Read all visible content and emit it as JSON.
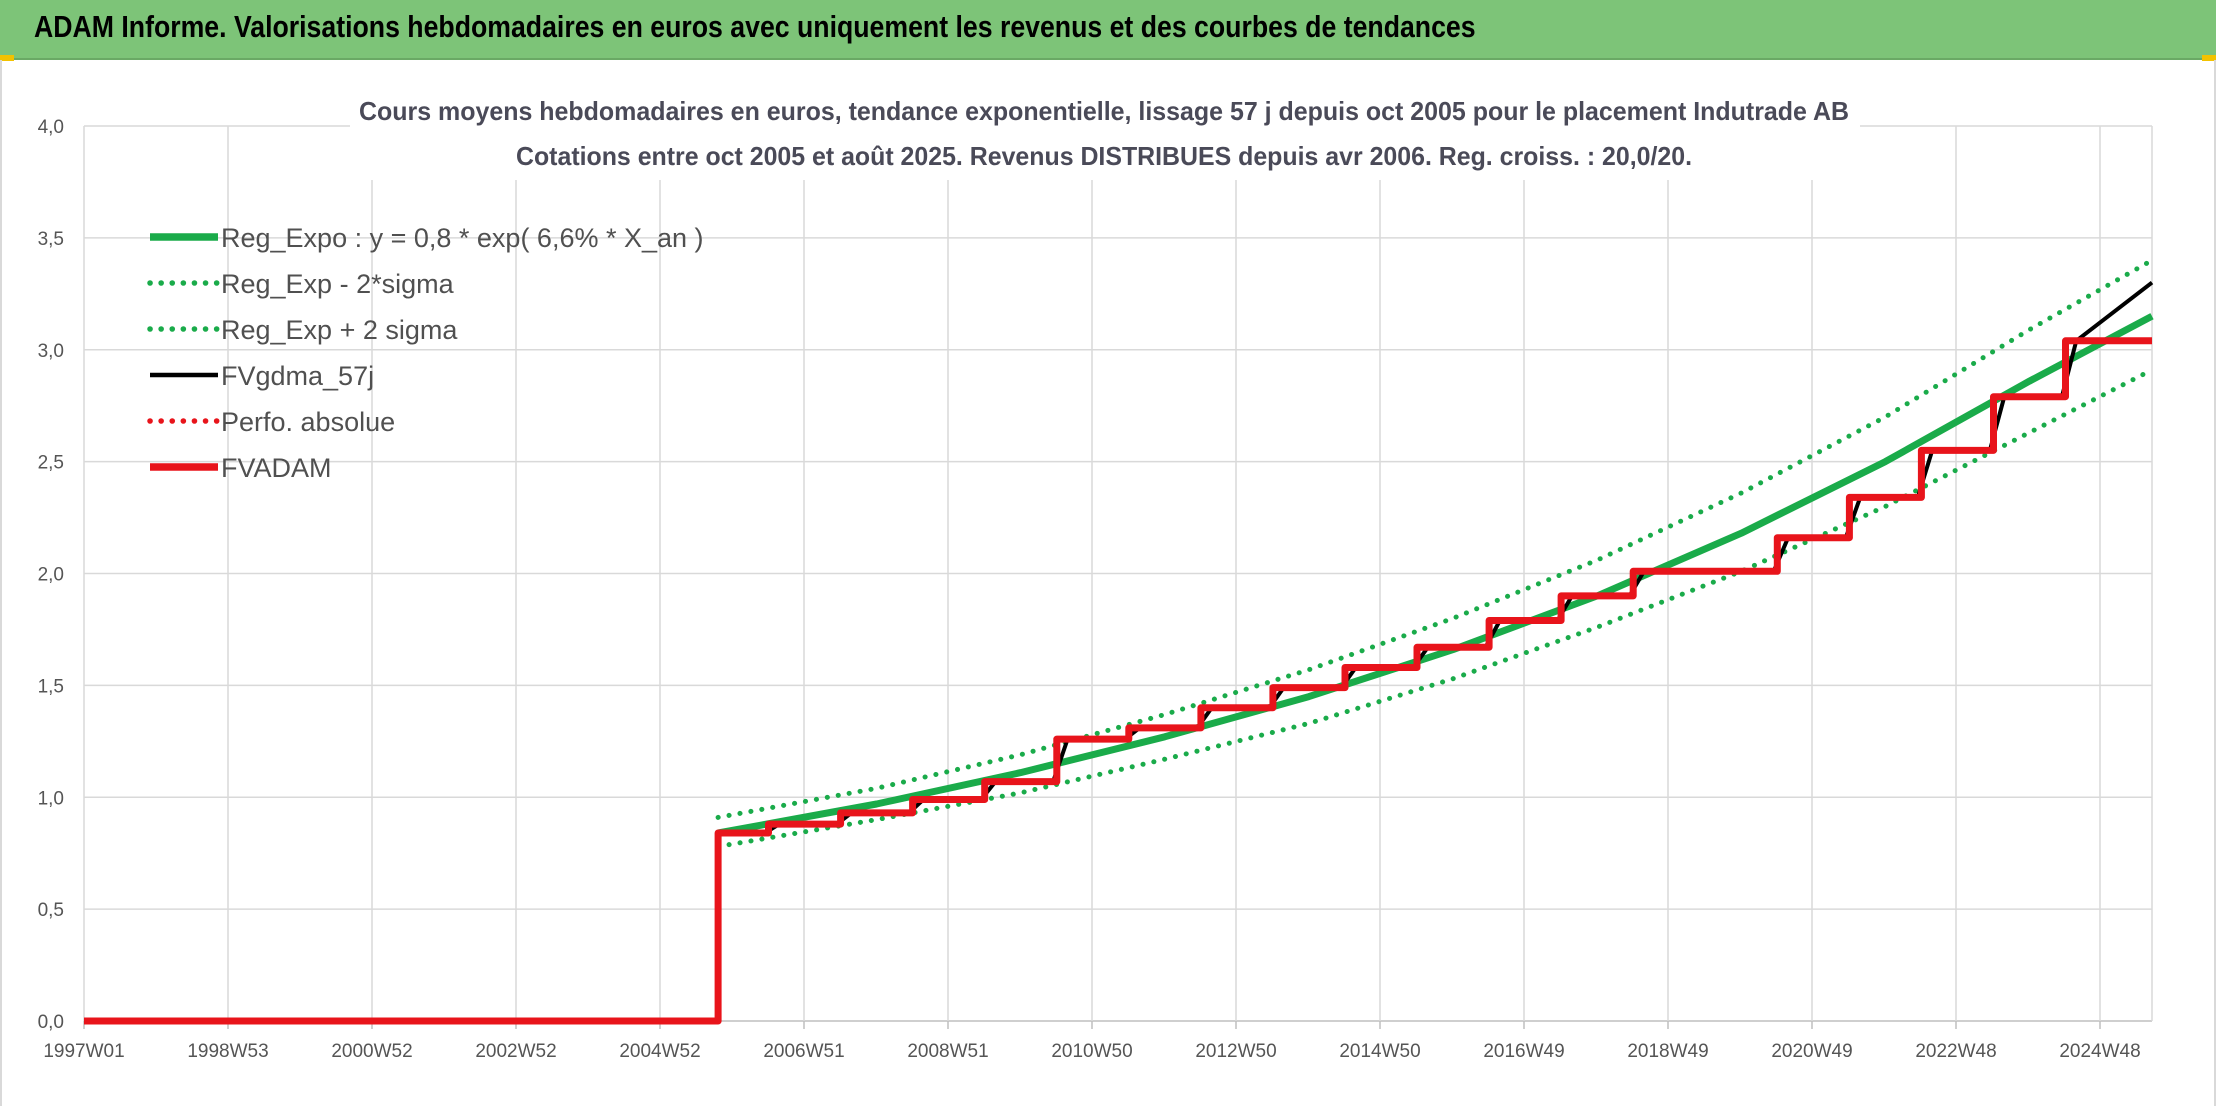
{
  "header": {
    "title": "ADAM Informe. Valorisations hebdomadaires en euros avec uniquement les revenus et des courbes de tendances"
  },
  "colors": {
    "header_bg": "#7dc478",
    "green": "#1aab4a",
    "black": "#000000",
    "red": "#e8141b",
    "grid": "#d9d9d9"
  },
  "chart_data": {
    "type": "line",
    "title": "Cours moyens hebdomadaires en euros, tendance exponentielle, lissage 57 j depuis oct 2005 pour le placement Indutrade AB",
    "subtitle": "Cotations entre oct 2005 et août 2025. Revenus DISTRIBUES depuis avr 2006. Reg. croiss. : 20,0/20.",
    "xlabel": "",
    "ylabel": "",
    "ylim": [
      0,
      4
    ],
    "xlim": [
      1997.0,
      2025.7
    ],
    "y_ticks": [
      "0,0",
      "0,5",
      "1,0",
      "1,5",
      "2,0",
      "2,5",
      "3,0",
      "3,5",
      "4,0"
    ],
    "x_ticks": [
      "1997W01",
      "1998W53",
      "2000W52",
      "2002W52",
      "2004W52",
      "2006W51",
      "2008W51",
      "2010W50",
      "2012W50",
      "2014W50",
      "2016W49",
      "2018W49",
      "2020W49",
      "2022W48",
      "2024W48"
    ],
    "grid": true,
    "legend_position": "top-left",
    "series": [
      {
        "name": "Reg_Expo : y = 0,8 * exp( 6,6% *  X_an )",
        "style": "solid-thick",
        "color": "#1aab4a",
        "x": [
          2005.8,
          2008,
          2010,
          2012,
          2014,
          2016,
          2018,
          2020,
          2022,
          2024,
          2025.7
        ],
        "y": [
          0.84,
          0.97,
          1.11,
          1.27,
          1.45,
          1.66,
          1.9,
          2.18,
          2.5,
          2.86,
          3.15
        ]
      },
      {
        "name": "Reg_Exp - 2*sigma",
        "style": "dotted",
        "color": "#1aab4a",
        "x": [
          2005.8,
          2008,
          2010,
          2012,
          2014,
          2016,
          2018,
          2020,
          2022,
          2024,
          2025.7
        ],
        "y": [
          0.78,
          0.9,
          1.02,
          1.17,
          1.33,
          1.53,
          1.76,
          2.01,
          2.3,
          2.63,
          2.91
        ]
      },
      {
        "name": "Reg_Exp + 2 sigma",
        "style": "dotted",
        "color": "#1aab4a",
        "x": [
          2005.8,
          2008,
          2010,
          2012,
          2014,
          2016,
          2018,
          2020,
          2022,
          2024,
          2025.7
        ],
        "y": [
          0.91,
          1.04,
          1.19,
          1.37,
          1.57,
          1.8,
          2.06,
          2.36,
          2.7,
          3.09,
          3.4
        ]
      },
      {
        "name": "FVgdma_57j",
        "style": "solid",
        "color": "#000000",
        "x": [
          1997.0,
          2005.8,
          2005.8,
          2006.45,
          2006.65,
          2007.45,
          2007.65,
          2008.45,
          2008.65,
          2009.45,
          2009.65,
          2010.45,
          2010.65,
          2011.45,
          2011.65,
          2012.45,
          2012.65,
          2013.45,
          2013.65,
          2014.45,
          2014.65,
          2015.45,
          2015.65,
          2016.45,
          2016.65,
          2017.45,
          2017.65,
          2018.45,
          2018.65,
          2020.45,
          2020.65,
          2021.45,
          2021.65,
          2022.45,
          2022.65,
          2023.45,
          2023.65,
          2024.45,
          2024.65,
          2025.7
        ],
        "y": [
          0.0,
          0.0,
          0.84,
          0.84,
          0.88,
          0.88,
          0.93,
          0.93,
          0.99,
          0.99,
          1.07,
          1.07,
          1.26,
          1.26,
          1.31,
          1.31,
          1.4,
          1.4,
          1.49,
          1.49,
          1.58,
          1.58,
          1.67,
          1.67,
          1.79,
          1.79,
          1.9,
          1.9,
          2.01,
          2.01,
          2.16,
          2.16,
          2.34,
          2.34,
          2.55,
          2.55,
          2.79,
          2.79,
          3.04,
          3.3
        ]
      },
      {
        "name": "Perfo. absolue",
        "style": "dotted",
        "color": "#e8141b",
        "x": [],
        "y": []
      },
      {
        "name": "FVADAM",
        "style": "solid-thick",
        "color": "#e8141b",
        "x": [
          1997.0,
          2005.8,
          2005.8,
          2006.5,
          2006.5,
          2007.5,
          2007.5,
          2008.5,
          2008.5,
          2009.5,
          2009.5,
          2010.5,
          2010.5,
          2011.5,
          2011.5,
          2012.5,
          2012.5,
          2013.5,
          2013.5,
          2014.5,
          2014.5,
          2015.5,
          2015.5,
          2016.5,
          2016.5,
          2017.5,
          2017.5,
          2018.5,
          2018.5,
          2020.5,
          2020.5,
          2021.5,
          2021.5,
          2022.5,
          2022.5,
          2023.5,
          2023.5,
          2024.5,
          2024.5,
          2025.7
        ],
        "y": [
          0.0,
          0.0,
          0.84,
          0.84,
          0.88,
          0.88,
          0.93,
          0.93,
          0.99,
          0.99,
          1.07,
          1.07,
          1.26,
          1.26,
          1.31,
          1.31,
          1.4,
          1.4,
          1.49,
          1.49,
          1.58,
          1.58,
          1.67,
          1.67,
          1.79,
          1.79,
          1.9,
          1.9,
          2.01,
          2.01,
          2.16,
          2.16,
          2.34,
          2.34,
          2.55,
          2.55,
          2.79,
          2.79,
          3.04,
          3.04
        ]
      }
    ]
  }
}
